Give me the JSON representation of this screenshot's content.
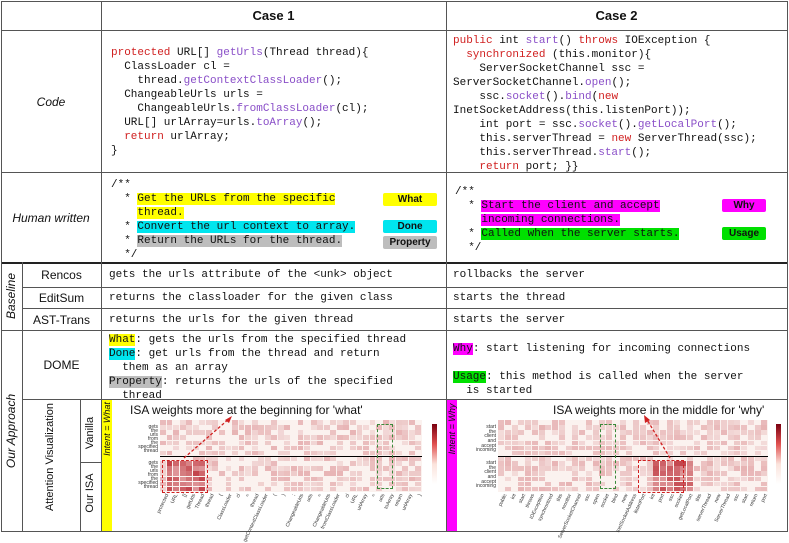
{
  "header": {
    "case1": "Case 1",
    "case2": "Case 2"
  },
  "rows": {
    "code": "Code",
    "human": "Human written",
    "baseline": "Baseline",
    "rencos": "Rencos",
    "editsum": "EditSum",
    "asttrans": "AST-Trans",
    "our_approach": "Our Approach",
    "dome": "DOME",
    "attention": "Attention Visualization",
    "vanilla": "Vanilla",
    "our_isa": "Our ISA",
    "intent_what": "Intent = What",
    "intent_why": "Intent = Why"
  },
  "code1": {
    "l1a": "protected",
    "l1b": " URL[] ",
    "l1c": "getUrls",
    "l1d": "(Thread thread){",
    "l2": "  ClassLoader cl =",
    "l3a": "    thread.",
    "l3b": "getContextClassLoader",
    "l3c": "();",
    "l4": "  ChangeableUrls urls =",
    "l5a": "    ChangeableUrls.",
    "l5b": "fromClassLoader",
    "l5c": "(cl);",
    "l6a": "  URL[] urlArray=urls.",
    "l6b": "toArray",
    "l6c": "();",
    "l7a": "  return",
    "l7b": " urlArray;",
    "l8": "}"
  },
  "code2": {
    "l1a": "public",
    "l1b": " int ",
    "l1c": "start",
    "l1d": "() ",
    "l1e": "throws",
    "l1f": " IOException {",
    "l2a": "  synchronized",
    "l2b": " (this.monitor){",
    "l3": "    ServerSocketChannel ssc =",
    "l4a": "ServerSocketChannel.",
    "l4b": "open",
    "l4c": "();",
    "l5a": "    ssc.",
    "l5b": "socket",
    "l5c": "().",
    "l5d": "bind",
    "l5e": "(",
    "l5f": "new",
    "l6": "InetSocketAddress(this.listenPort));",
    "l7a": "    int port = ssc.",
    "l7b": "socket",
    "l7c": "().",
    "l7d": "getLocalPort",
    "l7e": "();",
    "l8a": "    this.serverThread = ",
    "l8b": "new",
    "l8c": " ServerThread(ssc);",
    "l9a": "    this.serverThread.",
    "l9b": "start",
    "l9c": "();",
    "l10a": "    return",
    "l10b": " port; }}"
  },
  "human1": {
    "open": "/**",
    "s1a": "Get the URLs from the specific",
    "s1b": "thread.",
    "s2": "Convert the url context to array.",
    "s3": "Return the URLs for the thread.",
    "close": "*/",
    "b1": "What",
    "b2": "Done",
    "b3": "Property"
  },
  "human2": {
    "open": "/**",
    "s1a": "Start the client and accept",
    "s1b": "incoming connections.",
    "s2": "Called when the server starts.",
    "close": "*/",
    "b1": "Why",
    "b2": "Usage"
  },
  "baselines": {
    "rencos1": "gets the urls attribute of the <unk> object",
    "rencos2": "rollbacks the server",
    "editsum1": "returns the classloader for the given class",
    "editsum2": "starts the thread",
    "ast1": "returns the urls for the given thread",
    "ast2": "starts the server"
  },
  "dome1": {
    "t1": "What",
    "d1": ": gets the urls from the specified thread",
    "t2": "Done",
    "d2a": ": get urls from the thread and return",
    "d2b": "  them as an array",
    "t3": "Property",
    "d3a": ": returns the urls of the specified",
    "d3b": "  thread"
  },
  "dome2": {
    "t1": "Why",
    "d1": ": start listening for incoming connections",
    "t2": "Usage",
    "d2a": ": this method is called when the server",
    "d2b": "  is started"
  },
  "attn": {
    "caption1": "ISA weights more at the beginning for 'what'",
    "caption2": "ISA weights more in the middle for 'why'",
    "y1": [
      "gets",
      "the",
      "urls",
      "from",
      "the",
      "specified",
      "thread"
    ],
    "y2": [
      "start",
      "the",
      "client",
      "and",
      "accept",
      "incoming"
    ],
    "x1": [
      "protected",
      "URL",
      "[]",
      "getUrls",
      "Thread",
      "thread",
      "{",
      "ClassLoader",
      "cl",
      "=",
      "thread",
      "getContextClassLoader",
      "(",
      ")",
      ";",
      "ChangeableUrls",
      "urls",
      "=",
      "ChangeableUrls",
      "fromClassLoader",
      "cl",
      "URL",
      "urlArray",
      "=",
      "urls",
      "toArray",
      "return",
      "urlArray",
      "}"
    ],
    "x2": [
      "public",
      "int",
      "start",
      "throws",
      "IOException",
      "synchronized",
      "this",
      "monitor",
      "ServerSocketChannel",
      "ssc",
      "open",
      "socket",
      "bind",
      "new",
      "InetSocketAddress",
      "listenPort",
      "int",
      "port",
      "ssc",
      "socket",
      "getLocalPort",
      "this",
      "serverThread",
      "new",
      "ServerThread",
      "ssc",
      "start",
      "return",
      "port"
    ]
  },
  "colors": {
    "what": "#ffff00",
    "done": "#00e5ee",
    "property": "#bdbdbd",
    "why": "#ff00ff",
    "usage": "#00e000"
  }
}
